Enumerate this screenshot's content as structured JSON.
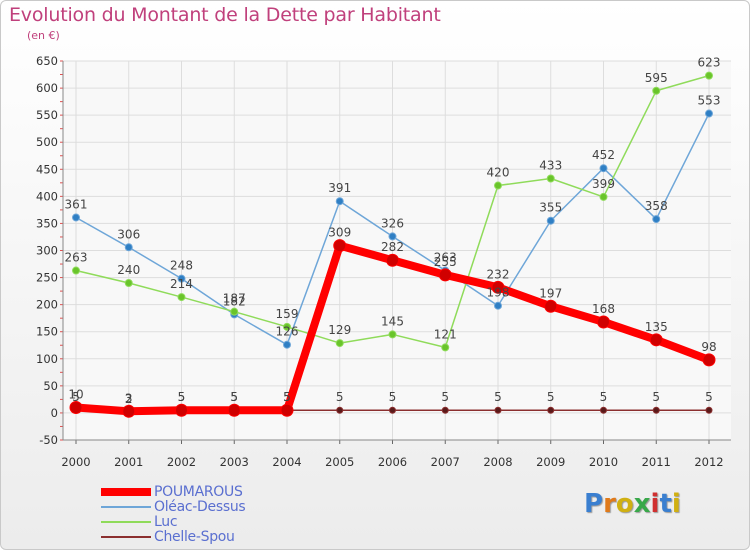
{
  "title": "Evolution du Montant de la Dette par Habitant",
  "subtitle": "(en €)",
  "brand": "Proxiti",
  "chart_data": {
    "type": "line",
    "title": "Evolution du Montant de la Dette par Habitant",
    "ylabel": "(en €)",
    "xlabel": "",
    "x": [
      "2000",
      "2001",
      "2002",
      "2003",
      "2004",
      "2005",
      "2006",
      "2007",
      "2008",
      "2009",
      "2010",
      "2011",
      "2012"
    ],
    "ylim": [
      -50,
      650
    ],
    "yticks": [
      -50,
      0,
      50,
      100,
      150,
      200,
      250,
      300,
      350,
      400,
      450,
      500,
      550,
      600,
      650
    ],
    "grid": true,
    "legend_position": "bottom-left",
    "series": [
      {
        "name": "POUMAROUS",
        "color": "#ff0000",
        "values": [
          10,
          3,
          5,
          5,
          5,
          309,
          282,
          255,
          232,
          197,
          168,
          135,
          98
        ]
      },
      {
        "name": "Oléac-Dessus",
        "color": "#6ea6d8",
        "values": [
          361,
          306,
          248,
          182,
          126,
          391,
          326,
          263,
          198,
          355,
          452,
          358,
          553
        ]
      },
      {
        "name": "Luc",
        "color": "#8fdb5a",
        "values": [
          263,
          240,
          214,
          187,
          159,
          129,
          145,
          121,
          420,
          433,
          399,
          595,
          623
        ]
      },
      {
        "name": "Chelle-Spou",
        "color": "#8b2f2f",
        "values": [
          5,
          2,
          5,
          5,
          5,
          5,
          5,
          5,
          5,
          5,
          5,
          5,
          5
        ]
      }
    ]
  }
}
